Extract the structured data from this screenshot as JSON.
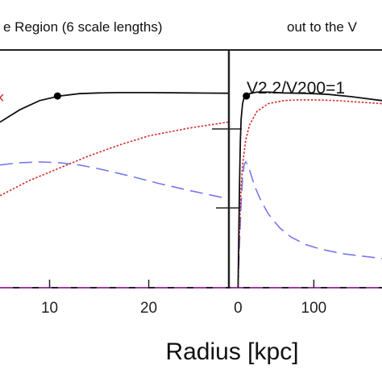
{
  "chart_data": [
    {
      "type": "line",
      "title": "e Region (6 scale lengths)",
      "xlabel": "Radius [kpc]",
      "ylabel": "",
      "xlim": [
        5,
        28
      ],
      "ylim": [
        0,
        1.55
      ],
      "xticks": [
        10,
        20
      ],
      "xtick_labels": [
        "10",
        "20"
      ],
      "grid": false,
      "series": [
        {
          "color": "#111111",
          "dash": "solid",
          "x": [
            5,
            7,
            9,
            11,
            13,
            15,
            17,
            20,
            24,
            28
          ],
          "y": [
            1.08,
            1.16,
            1.22,
            1.25,
            1.265,
            1.27,
            1.272,
            1.272,
            1.27,
            1.268
          ]
        },
        {
          "color": "#d42a2a",
          "dash": "dotted",
          "x": [
            5,
            8,
            11,
            14,
            17,
            20,
            24,
            28
          ],
          "y": [
            0.6,
            0.7,
            0.78,
            0.86,
            0.93,
            0.99,
            1.04,
            1.08
          ]
        },
        {
          "color": "#7777ee",
          "dash": "dashed",
          "x": [
            5,
            7,
            9,
            11,
            13,
            15,
            18,
            21,
            24,
            28
          ],
          "y": [
            0.8,
            0.815,
            0.82,
            0.815,
            0.8,
            0.775,
            0.73,
            0.68,
            0.635,
            0.58
          ]
        },
        {
          "color": "#cc44cc",
          "dash": "dashed",
          "x": [
            5,
            28
          ],
          "y": [
            0,
            0
          ]
        }
      ],
      "markers": [
        {
          "x": 10.8,
          "y": 1.25,
          "color": "#000000"
        }
      ]
    },
    {
      "type": "line",
      "title": "out to the V",
      "annotation": "V2.2/V200=1",
      "xlim": [
        -10,
        190
      ],
      "ylim": [
        0,
        1.55
      ],
      "xticks": [
        0,
        100
      ],
      "xtick_labels": [
        "0",
        "100"
      ],
      "grid": false,
      "series": [
        {
          "color": "#111111",
          "dash": "solid",
          "x": [
            0,
            1,
            2,
            3,
            4,
            6,
            8,
            11,
            15,
            25,
            40,
            60,
            80,
            100,
            120,
            150,
            190
          ],
          "y": [
            0,
            0.35,
            0.7,
            0.95,
            1.1,
            1.2,
            1.24,
            1.25,
            1.265,
            1.275,
            1.275,
            1.27,
            1.268,
            1.265,
            1.26,
            1.245,
            1.22
          ]
        },
        {
          "color": "#d42a2a",
          "dash": "dotted",
          "x": [
            0,
            2,
            4,
            6,
            10,
            15,
            25,
            40,
            60,
            80,
            100,
            130,
            160,
            190
          ],
          "y": [
            0,
            0.4,
            0.65,
            0.8,
            0.96,
            1.06,
            1.15,
            1.2,
            1.22,
            1.225,
            1.225,
            1.22,
            1.21,
            1.2
          ]
        },
        {
          "color": "#7777ee",
          "dash": "dashed",
          "x": [
            0,
            2,
            4,
            6,
            8,
            10,
            13,
            17,
            22,
            30,
            40,
            55,
            70,
            90,
            110,
            140,
            190
          ],
          "y": [
            0,
            0.3,
            0.55,
            0.72,
            0.8,
            0.82,
            0.8,
            0.74,
            0.66,
            0.57,
            0.48,
            0.39,
            0.33,
            0.28,
            0.25,
            0.22,
            0.19
          ]
        },
        {
          "color": "#cc44cc",
          "dash": "dashed",
          "x": [
            -10,
            190
          ],
          "y": [
            0,
            0
          ]
        }
      ],
      "markers": [
        {
          "x": 11,
          "y": 1.25,
          "color": "#000000"
        }
      ]
    }
  ]
}
